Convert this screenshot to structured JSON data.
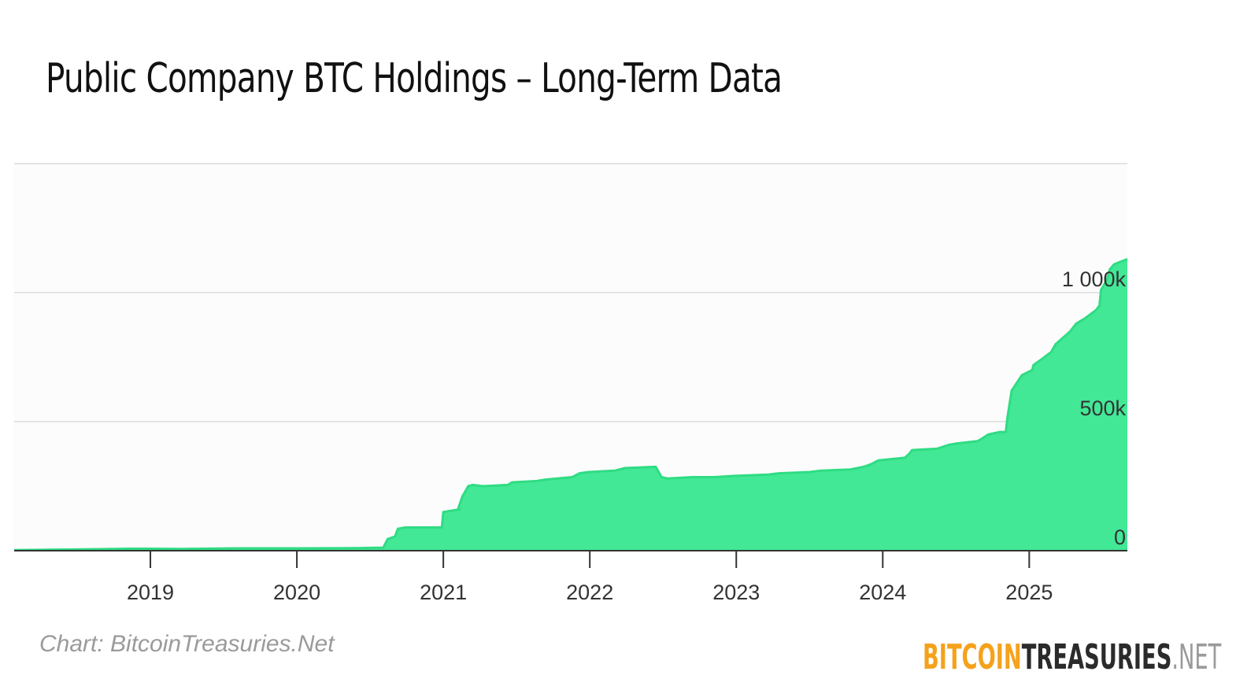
{
  "header": {
    "title": "Public Company BTC Holdings – Long-Term Data"
  },
  "footer": {
    "credit": "Chart: BitcoinTreasuries.Net",
    "logo": {
      "part1": "BITCOIN",
      "part2": "TREASURIES",
      "part3": ".NET"
    }
  },
  "colors": {
    "area_fill": "#42e896",
    "area_line": "#2fdc83",
    "plot_bg": "#fcfcfc",
    "grid": "#e4e4e4",
    "axis": "#333333"
  },
  "chart_data": {
    "type": "area",
    "title": "Public Company BTC Holdings – Long-Term Data",
    "xlabel": "",
    "ylabel": "",
    "x_ticks": [
      "2019",
      "2020",
      "2021",
      "2022",
      "2023",
      "2024",
      "2025"
    ],
    "y_ticks": [
      {
        "value": 0,
        "label": "0"
      },
      {
        "value": 500000,
        "label": "500k"
      },
      {
        "value": 1000000,
        "label": "1 000k"
      }
    ],
    "xlim": [
      2018.07,
      2025.67
    ],
    "ylim": [
      0,
      1500000
    ],
    "grid": true,
    "series": [
      {
        "x": [
          2018.07,
          2018.5,
          2018.9,
          2019.2,
          2019.6,
          2020.0,
          2020.4,
          2020.59,
          2020.62,
          2020.67,
          2020.69,
          2020.74,
          2020.99,
          2021.0,
          2021.11,
          2021.1,
          2021.13,
          2021.17,
          2021.2,
          2021.27,
          2021.44,
          2021.47,
          2021.64,
          2021.69,
          2021.88,
          2021.93,
          2021.99,
          2022.17,
          2022.24,
          2022.45,
          2022.49,
          2022.53,
          2022.7,
          2022.85,
          2022.99,
          2023.22,
          2023.29,
          2023.5,
          2023.58,
          2023.78,
          2023.87,
          2023.92,
          2023.97,
          2024.15,
          2024.18,
          2024.2,
          2024.37,
          2024.45,
          2024.5,
          2024.65,
          2024.68,
          2024.72,
          2024.8,
          2024.84,
          2024.85,
          2024.88,
          2024.95,
          2025.02,
          2025.03,
          2025.08,
          2025.15,
          2025.18,
          2025.2,
          2025.28,
          2025.32,
          2025.38,
          2025.45,
          2025.46,
          2025.48,
          2025.49,
          2025.53,
          2025.55,
          2025.58,
          2025.67
        ],
        "y": [
          2000,
          5000,
          8000,
          7000,
          9000,
          9000,
          10000,
          12000,
          45000,
          55000,
          85000,
          90000,
          90000,
          150000,
          160000,
          160000,
          210000,
          250000,
          255000,
          250000,
          255000,
          265000,
          270000,
          275000,
          285000,
          300000,
          305000,
          310000,
          320000,
          325000,
          285000,
          280000,
          285000,
          285000,
          290000,
          295000,
          300000,
          305000,
          310000,
          315000,
          325000,
          335000,
          350000,
          360000,
          375000,
          390000,
          395000,
          410000,
          415000,
          425000,
          435000,
          450000,
          460000,
          460000,
          510000,
          620000,
          680000,
          700000,
          720000,
          740000,
          770000,
          800000,
          810000,
          850000,
          880000,
          900000,
          930000,
          935000,
          950000,
          1010000,
          1050000,
          1090000,
          1110000,
          1130000
        ]
      }
    ]
  }
}
